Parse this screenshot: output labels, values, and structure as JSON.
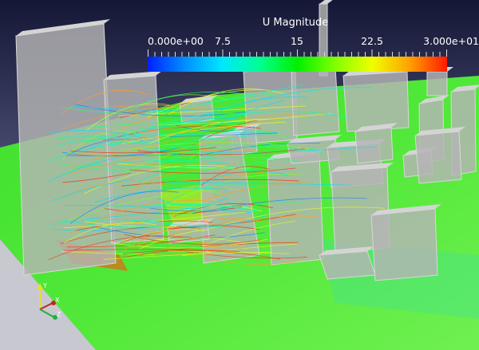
{
  "colorbar": {
    "title": "U Magnitude",
    "labels": [
      "0.000e+00",
      "7.5",
      "15",
      "22.5",
      "3.000e+01"
    ],
    "range": [
      0,
      30
    ],
    "colors": [
      "#0020ff",
      "#0090ff",
      "#00e8ff",
      "#00ff90",
      "#00f000",
      "#80ff00",
      "#f0ff00",
      "#ffa000",
      "#ff1a00"
    ]
  },
  "axes": {
    "x": "X",
    "y": "Y",
    "z": "Z",
    "x_color": "#c0281e",
    "y_color": "#e8e020",
    "z_color": "#20b040"
  },
  "colors": {
    "background_top": "#161838",
    "background_bottom": "#6a6c8c",
    "ground": "#3ee22a",
    "building": "#b4b4b4"
  }
}
